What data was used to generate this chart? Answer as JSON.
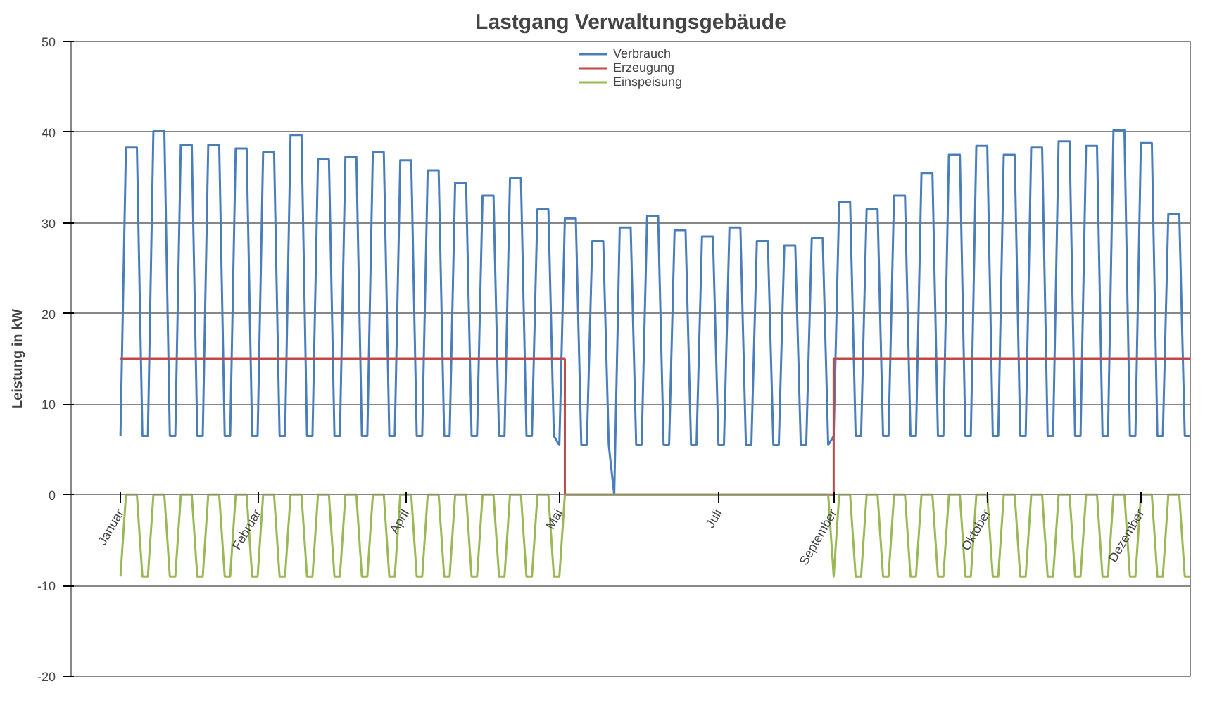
{
  "chart_data": {
    "type": "line",
    "title": "Lastgang Verwaltungsgebäude",
    "ylabel": "Leistung in kW",
    "categories": [
      "Januar",
      null,
      null,
      null,
      null,
      null,
      null,
      null,
      null,
      null,
      null,
      null,
      null,
      null,
      null,
      null,
      null,
      null,
      null,
      null,
      null,
      null,
      null,
      null,
      null,
      "Februar",
      null,
      null,
      null,
      null,
      null,
      null,
      null,
      null,
      null,
      null,
      null,
      null,
      null,
      null,
      null,
      null,
      null,
      null,
      null,
      null,
      null,
      null,
      null,
      null,
      null,
      null,
      "April",
      null,
      null,
      null,
      null,
      null,
      null,
      null,
      null,
      null,
      null,
      null,
      null,
      null,
      null,
      null,
      null,
      null,
      null,
      null,
      null,
      null,
      null,
      null,
      null,
      null,
      null,
      null,
      "Mai",
      null,
      null,
      null,
      null,
      null,
      null,
      null,
      null,
      null,
      null,
      null,
      null,
      null,
      null,
      null,
      null,
      null,
      null,
      null,
      null,
      null,
      null,
      null,
      null,
      null,
      null,
      null,
      null,
      "Juli",
      null,
      null,
      null,
      null,
      null,
      null,
      null,
      null,
      null,
      null,
      null,
      null,
      null,
      null,
      null,
      null,
      null,
      null,
      null,
      null,
      "September",
      null,
      null,
      null,
      null,
      null,
      null,
      null,
      null,
      null,
      null,
      null,
      null,
      null,
      null,
      null,
      null,
      null,
      null,
      null,
      null,
      null,
      null,
      null,
      null,
      null,
      null,
      null,
      "Oktober",
      null,
      null,
      null,
      null,
      null,
      null,
      null,
      null,
      null,
      null,
      null,
      null,
      null,
      null,
      null,
      null,
      null,
      null,
      null,
      null,
      null,
      null,
      null,
      null,
      null,
      null,
      null,
      "Dezember",
      null,
      null,
      null,
      null,
      null,
      null,
      null,
      null,
      null
    ],
    "ylim": [
      -20,
      50
    ],
    "yticks": [
      -20,
      -10,
      0,
      10,
      20,
      30,
      40,
      50
    ],
    "grid": "y",
    "legend": "top",
    "line_style": "solid",
    "series": [
      {
        "name": "Verbrauch",
        "color": "#4a7ebb",
        "values": [
          6.5,
          38.3,
          38.3,
          38.3,
          6.5,
          6.5,
          40.1,
          40.1,
          40.1,
          6.5,
          6.5,
          38.6,
          38.6,
          38.6,
          6.5,
          6.5,
          38.6,
          38.6,
          38.6,
          6.5,
          6.5,
          38.2,
          38.2,
          38.2,
          6.5,
          6.5,
          37.8,
          37.8,
          37.8,
          6.5,
          6.5,
          39.7,
          39.7,
          39.7,
          6.5,
          6.5,
          37.0,
          37.0,
          37.0,
          6.5,
          6.5,
          37.3,
          37.3,
          37.3,
          6.5,
          6.5,
          37.8,
          37.8,
          37.8,
          6.5,
          6.5,
          36.9,
          36.9,
          36.9,
          6.5,
          6.5,
          35.8,
          35.8,
          35.8,
          6.5,
          6.5,
          34.4,
          34.4,
          34.4,
          6.5,
          6.5,
          33.0,
          33.0,
          33.0,
          6.5,
          6.5,
          34.9,
          34.9,
          34.9,
          6.5,
          6.5,
          31.5,
          31.5,
          31.5,
          6.5,
          5.5,
          30.5,
          30.5,
          30.5,
          5.5,
          5.5,
          28.0,
          28.0,
          28.0,
          5.5,
          0,
          29.5,
          29.5,
          29.5,
          5.5,
          5.5,
          30.8,
          30.8,
          30.8,
          5.5,
          5.5,
          29.2,
          29.2,
          29.2,
          5.5,
          5.5,
          28.5,
          28.5,
          28.5,
          5.5,
          5.5,
          29.5,
          29.5,
          29.5,
          5.5,
          5.5,
          28.0,
          28.0,
          28.0,
          5.5,
          5.5,
          27.5,
          27.5,
          27.5,
          5.5,
          5.5,
          28.3,
          28.3,
          28.3,
          5.5,
          6.5,
          32.3,
          32.3,
          32.3,
          6.5,
          6.5,
          31.5,
          31.5,
          31.5,
          6.5,
          6.5,
          33.0,
          33.0,
          33.0,
          6.5,
          6.5,
          35.5,
          35.5,
          35.5,
          6.5,
          6.5,
          37.5,
          37.5,
          37.5,
          6.5,
          6.5,
          38.5,
          38.5,
          38.5,
          6.5,
          6.5,
          37.5,
          37.5,
          37.5,
          6.5,
          6.5,
          38.3,
          38.3,
          38.3,
          6.5,
          6.5,
          39.0,
          39.0,
          39.0,
          6.5,
          6.5,
          38.5,
          38.5,
          38.5,
          6.5,
          6.5,
          40.2,
          40.2,
          40.2,
          6.5,
          6.5,
          38.8,
          38.8,
          38.8,
          6.5,
          6.5,
          31.0,
          31.0,
          31.0,
          6.5,
          6.5
        ]
      },
      {
        "name": "Erzeugung",
        "color": "#be4b48",
        "type": "step",
        "values": [
          15,
          15,
          15,
          15,
          15,
          15,
          15,
          15,
          15,
          15,
          15,
          15,
          15,
          15,
          15,
          15,
          15,
          15,
          15,
          15,
          15,
          15,
          15,
          15,
          15,
          15,
          15,
          15,
          15,
          15,
          15,
          15,
          15,
          15,
          15,
          15,
          15,
          15,
          15,
          15,
          15,
          15,
          15,
          15,
          15,
          15,
          15,
          15,
          15,
          15,
          15,
          15,
          15,
          15,
          15,
          15,
          15,
          15,
          15,
          15,
          15,
          15,
          15,
          15,
          15,
          15,
          15,
          15,
          15,
          15,
          15,
          15,
          15,
          15,
          15,
          15,
          15,
          15,
          15,
          15,
          15,
          0,
          0,
          0,
          0,
          0,
          0,
          0,
          0,
          0,
          0,
          0,
          0,
          0,
          0,
          0,
          0,
          0,
          0,
          0,
          0,
          0,
          0,
          0,
          0,
          0,
          0,
          0,
          0,
          0,
          0,
          0,
          0,
          0,
          0,
          0,
          0,
          0,
          0,
          0,
          0,
          0,
          0,
          0,
          0,
          0,
          0,
          0,
          0,
          0,
          15,
          15,
          15,
          15,
          15,
          15,
          15,
          15,
          15,
          15,
          15,
          15,
          15,
          15,
          15,
          15,
          15,
          15,
          15,
          15,
          15,
          15,
          15,
          15,
          15,
          15,
          15,
          15,
          15,
          15,
          15,
          15,
          15,
          15,
          15,
          15,
          15,
          15,
          15,
          15,
          15,
          15,
          15,
          15,
          15,
          15,
          15,
          15,
          15,
          15,
          15,
          15,
          15,
          15,
          15,
          15,
          15,
          15,
          15,
          15,
          15,
          15,
          15,
          15,
          15,
          15
        ]
      },
      {
        "name": "Einspeisung",
        "color": "#98b954",
        "values": [
          -9,
          0,
          0,
          0,
          -9,
          -9,
          0,
          0,
          0,
          -9,
          -9,
          0,
          0,
          0,
          -9,
          -9,
          0,
          0,
          0,
          -9,
          -9,
          0,
          0,
          0,
          -9,
          -9,
          0,
          0,
          0,
          -9,
          -9,
          0,
          0,
          0,
          -9,
          -9,
          0,
          0,
          0,
          -9,
          -9,
          0,
          0,
          0,
          -9,
          -9,
          0,
          0,
          0,
          -9,
          -9,
          0,
          0,
          0,
          -9,
          -9,
          0,
          0,
          0,
          -9,
          -9,
          0,
          0,
          0,
          -9,
          -9,
          0,
          0,
          0,
          -9,
          -9,
          0,
          0,
          0,
          -9,
          -9,
          0,
          0,
          0,
          -9,
          -9,
          0,
          0,
          0,
          0,
          0,
          0,
          0,
          0,
          0,
          0,
          0,
          0,
          0,
          0,
          0,
          0,
          0,
          0,
          0,
          0,
          0,
          0,
          0,
          0,
          0,
          0,
          0,
          0,
          0,
          0,
          0,
          0,
          0,
          0,
          0,
          0,
          0,
          0,
          0,
          0,
          0,
          0,
          0,
          0,
          0,
          0,
          0,
          0,
          0,
          -9,
          0,
          0,
          0,
          -9,
          -9,
          0,
          0,
          0,
          -9,
          -9,
          0,
          0,
          0,
          -9,
          -9,
          0,
          0,
          0,
          -9,
          -9,
          0,
          0,
          0,
          -9,
          -9,
          0,
          0,
          0,
          -9,
          -9,
          0,
          0,
          0,
          -9,
          -9,
          0,
          0,
          0,
          -9,
          -9,
          0,
          0,
          0,
          -9,
          -9,
          0,
          0,
          0,
          -9,
          -9,
          0,
          0,
          0,
          -9,
          -9,
          0,
          0,
          0,
          -9,
          -9,
          0,
          0,
          0,
          -9,
          -9
        ]
      }
    ]
  }
}
